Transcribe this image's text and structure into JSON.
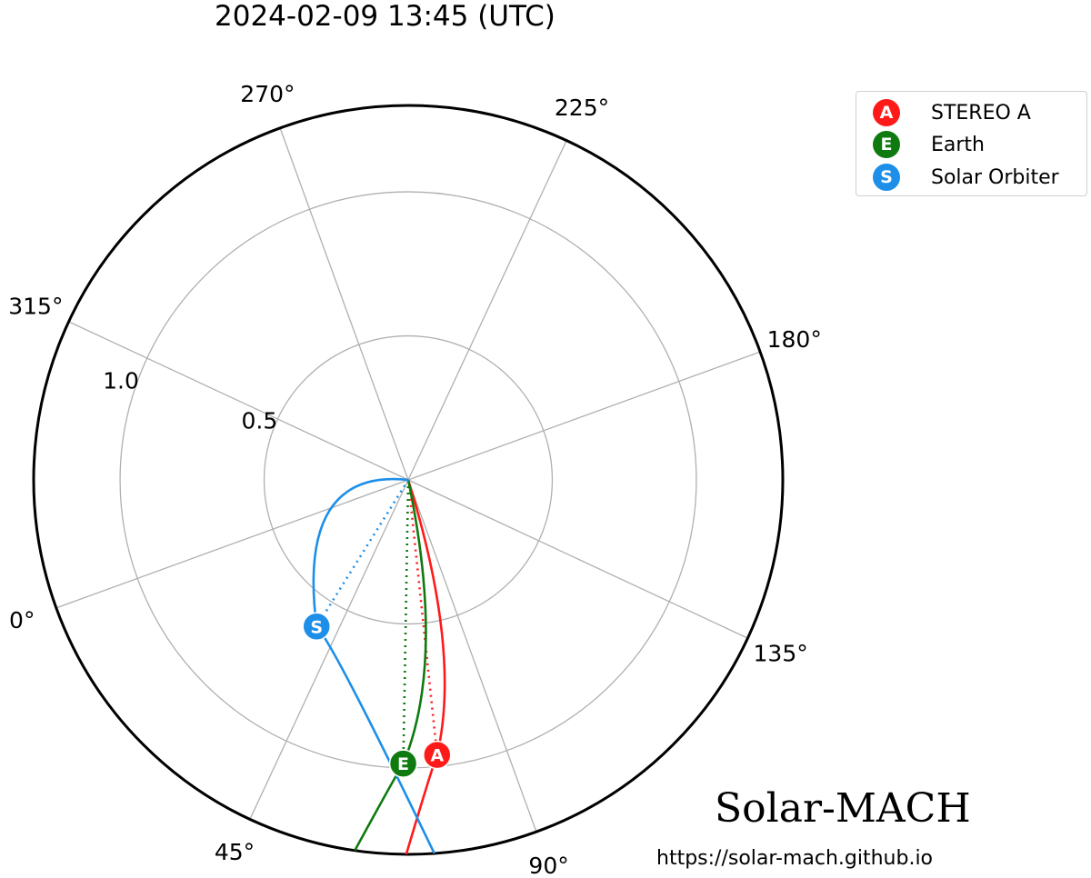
{
  "title": "2024-02-09 13:45 (UTC)",
  "branding": {
    "name": "Solar-MACH",
    "url": "https://solar-mach.github.io"
  },
  "chart_data": {
    "type": "polar",
    "angular_tick_labels": [
      "0°",
      "45°",
      "90°",
      "135°",
      "180°",
      "225°",
      "270°",
      "315°"
    ],
    "angular_ticks_deg": [
      0,
      45,
      90,
      135,
      180,
      225,
      270,
      315
    ],
    "radial_tick_labels": [
      "0.5",
      "1.0"
    ],
    "radial_ticks": [
      0.5,
      1.0
    ],
    "rlim": [
      0,
      1.3
    ],
    "grid": true,
    "legend_placement": "top-right",
    "colors": {
      "axes_frame": "#000000",
      "grid": "#b0b0b0"
    },
    "bodies": [
      {
        "name": "STEREO A",
        "marker": "A",
        "color": "#ff1a1a",
        "r": 0.96,
        "lon_deg": 76,
        "spiral_angle_deg": 7
      },
      {
        "name": "Earth",
        "marker": "E",
        "color": "#0f7a0f",
        "r": 0.985,
        "lon_deg": 69,
        "spiral_angle_deg": 8
      },
      {
        "name": "Solar Orbiter",
        "marker": "S",
        "color": "#1e8fe8",
        "r": 0.6,
        "lon_deg": 38,
        "spiral_angle_deg": -40
      }
    ]
  }
}
